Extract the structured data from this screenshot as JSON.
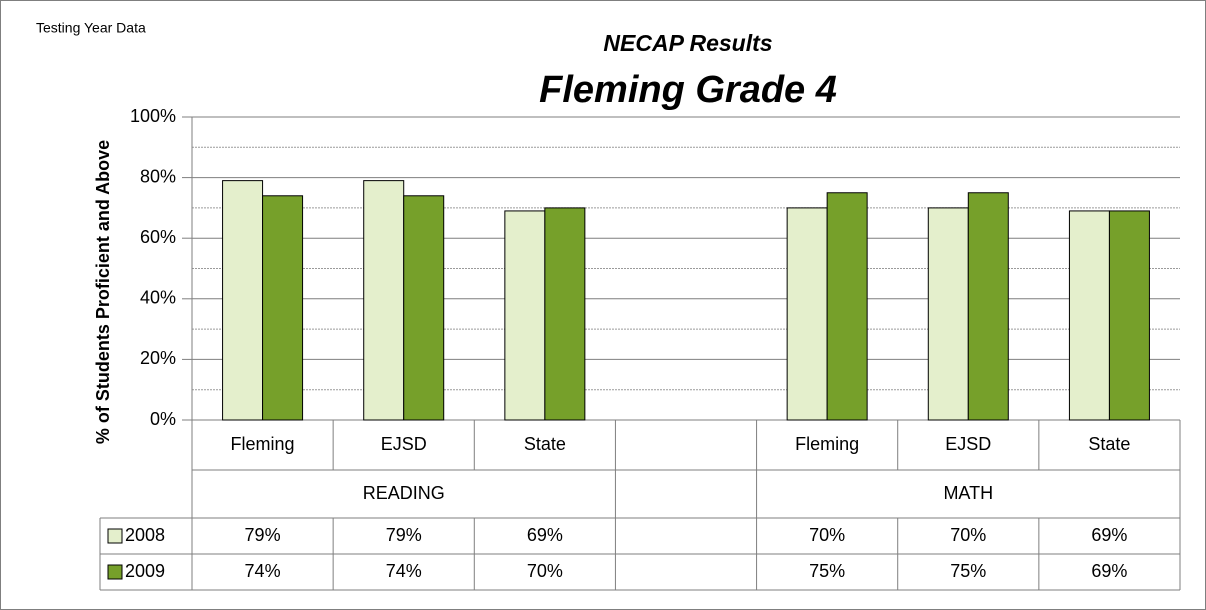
{
  "chart_data": {
    "type": "bar",
    "annotation": "Testing Year Data",
    "title": "NECAP Results",
    "subtitle": "Fleming Grade 4",
    "y_label": "% of Students Proficient and Above",
    "groups": [
      {
        "name": "READING",
        "categories": [
          "Fleming",
          "EJSD",
          "State"
        ]
      },
      {
        "name": null,
        "categories": [
          null
        ]
      },
      {
        "name": "MATH",
        "categories": [
          "Fleming",
          "EJSD",
          "State"
        ]
      }
    ],
    "series": [
      {
        "name": "2008",
        "color": "#e4efcc",
        "values": [
          79,
          79,
          69,
          null,
          70,
          70,
          69
        ],
        "value_labels": [
          "79%",
          "79%",
          "69%",
          null,
          "70%",
          "70%",
          "69%"
        ]
      },
      {
        "name": "2009",
        "color": "#76a02a",
        "values": [
          74,
          74,
          70,
          null,
          75,
          75,
          69
        ],
        "value_labels": [
          "74%",
          "74%",
          "70%",
          null,
          "75%",
          "75%",
          "69%"
        ]
      }
    ],
    "ylim": [
      0,
      100
    ],
    "yticks": [
      {
        "value": 0,
        "label": "0%"
      },
      {
        "value": 20,
        "label": "20%"
      },
      {
        "value": 40,
        "label": "40%"
      },
      {
        "value": 60,
        "label": "60%"
      },
      {
        "value": 80,
        "label": "80%"
      },
      {
        "value": 100,
        "label": "100%"
      }
    ],
    "minor_yticks": [
      10,
      30,
      50,
      70,
      90
    ],
    "grid": true,
    "data_table": true
  }
}
